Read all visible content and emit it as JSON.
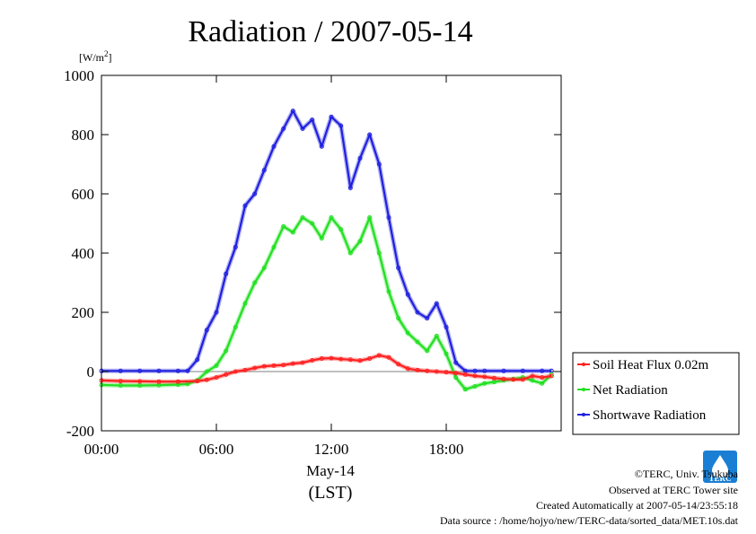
{
  "chart_data": {
    "type": "line",
    "title": "Radiation / 2007-05-14",
    "ylabel": "[W/m²]",
    "ylabel_base": "[W/m",
    "ylabel_sup": "2",
    "ylabel_end": "]",
    "xlabel": "May-14",
    "xlabel_sub": "(LST)",
    "xlim": [
      0,
      24
    ],
    "ylim": [
      -200,
      1000
    ],
    "x_ticks": [
      {
        "value": 0,
        "label": "00:00"
      },
      {
        "value": 6,
        "label": "06:00"
      },
      {
        "value": 12,
        "label": "12:00"
      },
      {
        "value": 18,
        "label": "18:00"
      }
    ],
    "y_ticks": [
      {
        "value": -200,
        "label": "-200"
      },
      {
        "value": 0,
        "label": "0"
      },
      {
        "value": 200,
        "label": "200"
      },
      {
        "value": 400,
        "label": "400"
      },
      {
        "value": 600,
        "label": "600"
      },
      {
        "value": 800,
        "label": "800"
      },
      {
        "value": 1000,
        "label": "1000"
      }
    ],
    "grid": false,
    "legend_position": "right-bottom",
    "series": [
      {
        "name": "Soil Heat Flux 0.02m",
        "color": "#ff2020",
        "x": [
          0,
          1,
          2,
          3,
          4,
          5,
          5.5,
          6,
          6.5,
          7,
          7.5,
          8,
          8.5,
          9,
          9.5,
          10,
          10.5,
          11,
          11.5,
          12,
          12.5,
          13,
          13.5,
          14,
          14.5,
          15,
          15.5,
          16,
          16.5,
          17,
          17.5,
          18,
          18.5,
          19,
          19.5,
          20,
          20.5,
          21,
          21.5,
          22,
          22.5,
          23,
          23.5
        ],
        "y": [
          -30,
          -32,
          -33,
          -34,
          -34,
          -32,
          -28,
          -20,
          -10,
          0,
          5,
          12,
          18,
          20,
          22,
          27,
          30,
          38,
          44,
          45,
          42,
          40,
          37,
          44,
          55,
          48,
          25,
          10,
          5,
          2,
          0,
          -2,
          -5,
          -10,
          -15,
          -18,
          -22,
          -25,
          -27,
          -27,
          -15,
          -20,
          -15
        ]
      },
      {
        "name": "Net Radiation",
        "color": "#20e020",
        "x": [
          0,
          1,
          2,
          3,
          4,
          4.5,
          5,
          5.5,
          6,
          6.5,
          7,
          7.5,
          8,
          8.5,
          9,
          9.5,
          10,
          10.5,
          11,
          11.5,
          12,
          12.5,
          13,
          13.5,
          14,
          14.5,
          15,
          15.5,
          16,
          16.5,
          17,
          17.5,
          18,
          18.5,
          19,
          19.5,
          20,
          20.5,
          21,
          21.5,
          22,
          22.5,
          23,
          23.5
        ],
        "y": [
          -45,
          -47,
          -47,
          -46,
          -44,
          -42,
          -30,
          0,
          20,
          70,
          150,
          230,
          300,
          350,
          420,
          490,
          470,
          520,
          500,
          450,
          520,
          480,
          400,
          440,
          520,
          400,
          270,
          180,
          130,
          100,
          70,
          120,
          60,
          -20,
          -60,
          -50,
          -40,
          -35,
          -30,
          -25,
          -20,
          -30,
          -40,
          -10
        ]
      },
      {
        "name": "Shortwave Radiation",
        "color": "#2020e0",
        "x": [
          0,
          1,
          2,
          3,
          4,
          4.5,
          5,
          5.5,
          6,
          6.5,
          7,
          7.5,
          8,
          8.5,
          9,
          9.5,
          10,
          10.5,
          11,
          11.5,
          12,
          12.5,
          13,
          13.5,
          14,
          14.5,
          15,
          15.5,
          16,
          16.5,
          17,
          17.5,
          18,
          18.5,
          19,
          19.5,
          20,
          21,
          22,
          23,
          23.5
        ],
        "y": [
          2,
          2,
          2,
          2,
          2,
          2,
          40,
          140,
          200,
          330,
          420,
          560,
          600,
          680,
          760,
          820,
          880,
          820,
          850,
          760,
          860,
          830,
          620,
          720,
          800,
          700,
          520,
          350,
          260,
          200,
          180,
          230,
          150,
          30,
          2,
          2,
          2,
          2,
          2,
          2,
          2
        ]
      }
    ],
    "footer": {
      "copyright": "©TERC, Univ. Tsukuba",
      "site": "Observed at TERC Tower site",
      "created": "Created Automatically at 2007-05-14/23:55:18",
      "source": "Data source : /home/hojyo/new/TERC-data/sorted_data/MET.10s.dat"
    },
    "logo_text": "TERC",
    "colors": {
      "soil": "#ff2020",
      "net": "#20e020",
      "shortwave": "#2020e0",
      "logo": "#1a7fd4"
    }
  }
}
